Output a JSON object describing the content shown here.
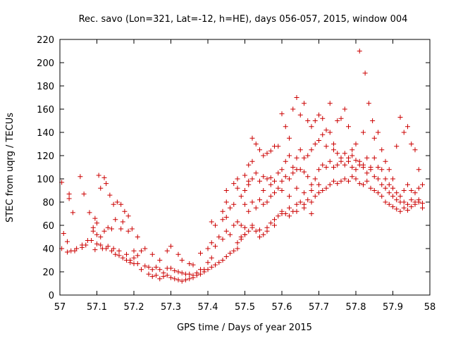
{
  "chart_data": {
    "type": "scatter",
    "title": "Rec. savo (Lon=321, Lat=-12, h=HE), days 056-057, 2015, window 004",
    "xlabel": "GPS time / Days of year 2015",
    "ylabel": "STEC from uqrg / TECUs",
    "xlim": [
      57,
      58
    ],
    "ylim": [
      0,
      220
    ],
    "xticks": [
      "57",
      "57.1",
      "57.2",
      "57.3",
      "57.4",
      "57.5",
      "57.6",
      "57.7",
      "57.8",
      "57.9",
      "58"
    ],
    "yticks": [
      "0",
      "20",
      "40",
      "60",
      "80",
      "100",
      "120",
      "140",
      "160",
      "180",
      "200",
      "220"
    ],
    "grid": false,
    "marker": "plus",
    "color": "#cc0000",
    "points": [
      [
        57.005,
        97
      ],
      [
        57.01,
        53
      ],
      [
        57.005,
        40
      ],
      [
        57.025,
        87
      ],
      [
        57.025,
        83
      ],
      [
        57.035,
        71
      ],
      [
        57.055,
        102
      ],
      [
        57.065,
        87
      ],
      [
        57.08,
        71
      ],
      [
        57.095,
        66
      ],
      [
        57.02,
        46
      ],
      [
        57.03,
        38
      ],
      [
        57.045,
        40
      ],
      [
        57.06,
        41
      ],
      [
        57.07,
        43
      ],
      [
        57.085,
        47
      ],
      [
        57.09,
        58
      ],
      [
        57.1,
        62
      ],
      [
        57.105,
        103
      ],
      [
        57.12,
        101
      ],
      [
        57.11,
        92
      ],
      [
        57.125,
        96
      ],
      [
        57.135,
        86
      ],
      [
        57.145,
        78
      ],
      [
        57.155,
        80
      ],
      [
        57.165,
        78
      ],
      [
        57.175,
        72
      ],
      [
        57.185,
        68
      ],
      [
        57.02,
        37
      ],
      [
        57.04,
        38
      ],
      [
        57.06,
        43
      ],
      [
        57.075,
        47
      ],
      [
        57.09,
        55
      ],
      [
        57.1,
        52
      ],
      [
        57.11,
        50
      ],
      [
        57.12,
        55
      ],
      [
        57.13,
        58
      ],
      [
        57.14,
        57
      ],
      [
        57.15,
        65
      ],
      [
        57.165,
        57
      ],
      [
        57.17,
        63
      ],
      [
        57.185,
        55
      ],
      [
        57.195,
        57
      ],
      [
        57.21,
        50
      ],
      [
        57.095,
        39
      ],
      [
        57.1,
        44
      ],
      [
        57.11,
        43
      ],
      [
        57.115,
        40
      ],
      [
        57.125,
        40
      ],
      [
        57.14,
        38
      ],
      [
        57.15,
        35
      ],
      [
        57.16,
        34
      ],
      [
        57.17,
        32
      ],
      [
        57.18,
        35
      ],
      [
        57.19,
        30
      ],
      [
        57.2,
        32
      ],
      [
        57.21,
        34
      ],
      [
        57.13,
        42
      ],
      [
        57.145,
        40
      ],
      [
        57.16,
        38
      ],
      [
        57.18,
        30
      ],
      [
        57.19,
        28
      ],
      [
        57.2,
        27
      ],
      [
        57.21,
        27
      ],
      [
        57.22,
        22
      ],
      [
        57.23,
        25
      ],
      [
        57.24,
        24
      ],
      [
        57.25,
        22
      ],
      [
        57.26,
        24
      ],
      [
        57.27,
        22
      ],
      [
        57.28,
        19
      ],
      [
        57.29,
        23
      ],
      [
        57.3,
        23
      ],
      [
        57.31,
        21
      ],
      [
        57.32,
        20
      ],
      [
        57.33,
        19
      ],
      [
        57.34,
        18
      ],
      [
        57.35,
        18
      ],
      [
        57.36,
        17
      ],
      [
        57.37,
        19
      ],
      [
        57.2,
        38
      ],
      [
        57.22,
        38
      ],
      [
        57.23,
        40
      ],
      [
        57.25,
        35
      ],
      [
        57.27,
        30
      ],
      [
        57.29,
        38
      ],
      [
        57.3,
        42
      ],
      [
        57.32,
        35
      ],
      [
        57.33,
        30
      ],
      [
        57.35,
        27
      ],
      [
        57.36,
        26
      ],
      [
        57.38,
        22
      ],
      [
        57.39,
        22
      ],
      [
        57.4,
        28
      ],
      [
        57.41,
        32
      ],
      [
        57.24,
        18
      ],
      [
        57.25,
        16
      ],
      [
        57.26,
        17
      ],
      [
        57.27,
        14
      ],
      [
        57.28,
        16
      ],
      [
        57.29,
        17
      ],
      [
        57.3,
        15
      ],
      [
        57.31,
        14
      ],
      [
        57.32,
        13
      ],
      [
        57.33,
        12
      ],
      [
        57.34,
        13
      ],
      [
        57.35,
        14
      ],
      [
        57.36,
        15
      ],
      [
        57.37,
        17
      ],
      [
        57.38,
        18
      ],
      [
        57.39,
        20
      ],
      [
        57.4,
        22
      ],
      [
        57.41,
        24
      ],
      [
        57.42,
        26
      ],
      [
        57.43,
        28
      ],
      [
        57.44,
        30
      ],
      [
        57.45,
        33
      ],
      [
        57.46,
        36
      ],
      [
        57.47,
        38
      ],
      [
        57.48,
        40
      ],
      [
        57.38,
        36
      ],
      [
        57.4,
        40
      ],
      [
        57.41,
        45
      ],
      [
        57.42,
        42
      ],
      [
        57.43,
        50
      ],
      [
        57.44,
        48
      ],
      [
        57.45,
        55
      ],
      [
        57.46,
        52
      ],
      [
        57.47,
        60
      ],
      [
        57.48,
        63
      ],
      [
        57.49,
        60
      ],
      [
        57.5,
        58
      ],
      [
        57.41,
        63
      ],
      [
        57.42,
        60
      ],
      [
        57.44,
        65
      ],
      [
        57.45,
        67
      ],
      [
        57.45,
        80
      ],
      [
        57.46,
        75
      ],
      [
        57.47,
        78
      ],
      [
        57.48,
        92
      ],
      [
        57.49,
        85
      ],
      [
        57.5,
        90
      ],
      [
        57.51,
        98
      ],
      [
        57.44,
        72
      ],
      [
        57.45,
        90
      ],
      [
        57.47,
        96
      ],
      [
        57.48,
        100
      ],
      [
        57.5,
        103
      ],
      [
        57.51,
        112
      ],
      [
        57.52,
        115
      ],
      [
        57.52,
        135
      ],
      [
        57.53,
        130
      ],
      [
        57.54,
        125
      ],
      [
        57.55,
        120
      ],
      [
        57.56,
        122
      ],
      [
        57.57,
        124
      ],
      [
        57.58,
        128
      ],
      [
        57.59,
        128
      ],
      [
        57.6,
        156
      ],
      [
        57.61,
        145
      ],
      [
        57.62,
        135
      ],
      [
        57.63,
        160
      ],
      [
        57.64,
        170
      ],
      [
        57.65,
        155
      ],
      [
        57.66,
        165
      ],
      [
        57.67,
        150
      ],
      [
        57.68,
        145
      ],
      [
        57.69,
        150
      ],
      [
        57.7,
        155
      ],
      [
        57.71,
        152
      ],
      [
        57.72,
        142
      ],
      [
        57.73,
        165
      ],
      [
        57.74,
        130
      ],
      [
        57.75,
        150
      ],
      [
        57.76,
        152
      ],
      [
        57.77,
        160
      ],
      [
        57.78,
        145
      ],
      [
        57.79,
        120
      ],
      [
        57.8,
        130
      ],
      [
        57.81,
        210
      ],
      [
        57.82,
        140
      ],
      [
        57.825,
        191
      ],
      [
        57.835,
        165
      ],
      [
        57.845,
        150
      ],
      [
        57.85,
        135
      ],
      [
        57.86,
        140
      ],
      [
        57.87,
        125
      ],
      [
        57.88,
        115
      ],
      [
        57.89,
        108
      ],
      [
        57.9,
        100
      ],
      [
        57.91,
        128
      ],
      [
        57.92,
        153
      ],
      [
        57.93,
        140
      ],
      [
        57.94,
        145
      ],
      [
        57.95,
        130
      ],
      [
        57.96,
        125
      ],
      [
        57.97,
        108
      ],
      [
        57.51,
        95
      ],
      [
        57.52,
        100
      ],
      [
        57.53,
        105
      ],
      [
        57.54,
        98
      ],
      [
        57.55,
        102
      ],
      [
        57.56,
        100
      ],
      [
        57.57,
        101
      ],
      [
        57.58,
        98
      ],
      [
        57.59,
        105
      ],
      [
        57.6,
        108
      ],
      [
        57.61,
        115
      ],
      [
        57.62,
        120
      ],
      [
        57.63,
        110
      ],
      [
        57.64,
        118
      ],
      [
        57.65,
        125
      ],
      [
        57.66,
        118
      ],
      [
        57.67,
        120
      ],
      [
        57.68,
        125
      ],
      [
        57.69,
        130
      ],
      [
        57.7,
        133
      ],
      [
        57.71,
        138
      ],
      [
        57.72,
        128
      ],
      [
        57.73,
        140
      ],
      [
        57.74,
        125
      ],
      [
        57.75,
        122
      ],
      [
        57.76,
        118
      ],
      [
        57.77,
        122
      ],
      [
        57.78,
        118
      ],
      [
        57.79,
        125
      ],
      [
        57.8,
        116
      ],
      [
        57.81,
        115
      ],
      [
        57.82,
        112
      ],
      [
        57.83,
        118
      ],
      [
        57.84,
        110
      ],
      [
        57.85,
        118
      ],
      [
        57.86,
        110
      ],
      [
        57.87,
        108
      ],
      [
        57.88,
        100
      ],
      [
        57.89,
        95
      ],
      [
        57.9,
        92
      ],
      [
        57.91,
        88
      ],
      [
        57.92,
        85
      ],
      [
        57.93,
        90
      ],
      [
        57.94,
        95
      ],
      [
        57.95,
        90
      ],
      [
        57.96,
        88
      ],
      [
        57.97,
        92
      ],
      [
        57.98,
        95
      ],
      [
        57.5,
        78
      ],
      [
        57.51,
        72
      ],
      [
        57.52,
        80
      ],
      [
        57.53,
        75
      ],
      [
        57.54,
        82
      ],
      [
        57.55,
        78
      ],
      [
        57.56,
        80
      ],
      [
        57.57,
        85
      ],
      [
        57.58,
        88
      ],
      [
        57.59,
        92
      ],
      [
        57.6,
        98
      ],
      [
        57.61,
        102
      ],
      [
        57.62,
        100
      ],
      [
        57.63,
        105
      ],
      [
        57.64,
        108
      ],
      [
        57.65,
        108
      ],
      [
        57.66,
        106
      ],
      [
        57.67,
        102
      ],
      [
        57.68,
        95
      ],
      [
        57.69,
        100
      ],
      [
        57.7,
        108
      ],
      [
        57.71,
        112
      ],
      [
        57.72,
        110
      ],
      [
        57.73,
        115
      ],
      [
        57.74,
        110
      ],
      [
        57.75,
        112
      ],
      [
        57.76,
        115
      ],
      [
        57.77,
        112
      ],
      [
        57.78,
        115
      ],
      [
        57.79,
        110
      ],
      [
        57.8,
        108
      ],
      [
        57.81,
        112
      ],
      [
        57.82,
        110
      ],
      [
        57.83,
        105
      ],
      [
        57.84,
        108
      ],
      [
        57.85,
        102
      ],
      [
        57.86,
        100
      ],
      [
        57.87,
        95
      ],
      [
        57.88,
        92
      ],
      [
        57.89,
        88
      ],
      [
        57.9,
        85
      ],
      [
        57.91,
        82
      ],
      [
        57.92,
        80
      ],
      [
        57.93,
        80
      ],
      [
        57.94,
        78
      ],
      [
        57.95,
        82
      ],
      [
        57.96,
        80
      ],
      [
        57.97,
        82
      ],
      [
        57.98,
        79
      ],
      [
        57.49,
        50
      ],
      [
        57.5,
        52
      ],
      [
        57.51,
        55
      ],
      [
        57.52,
        58
      ],
      [
        57.53,
        55
      ],
      [
        57.54,
        56
      ],
      [
        57.55,
        52
      ],
      [
        57.56,
        58
      ],
      [
        57.57,
        62
      ],
      [
        57.58,
        65
      ],
      [
        57.59,
        68
      ],
      [
        57.6,
        72
      ],
      [
        57.61,
        70
      ],
      [
        57.62,
        75
      ],
      [
        57.63,
        72
      ],
      [
        57.64,
        78
      ],
      [
        57.65,
        80
      ],
      [
        57.66,
        78
      ],
      [
        57.67,
        82
      ],
      [
        57.68,
        80
      ],
      [
        57.69,
        85
      ],
      [
        57.7,
        88
      ],
      [
        57.71,
        90
      ],
      [
        57.72,
        92
      ],
      [
        57.73,
        95
      ],
      [
        57.74,
        98
      ],
      [
        57.75,
        96
      ],
      [
        57.76,
        98
      ],
      [
        57.77,
        100
      ],
      [
        57.78,
        98
      ],
      [
        57.79,
        102
      ],
      [
        57.8,
        100
      ],
      [
        57.81,
        96
      ],
      [
        57.82,
        95
      ],
      [
        57.83,
        98
      ],
      [
        57.84,
        92
      ],
      [
        57.85,
        90
      ],
      [
        57.86,
        88
      ],
      [
        57.87,
        85
      ],
      [
        57.88,
        80
      ],
      [
        57.89,
        78
      ],
      [
        57.9,
        76
      ],
      [
        57.91,
        74
      ],
      [
        57.92,
        72
      ],
      [
        57.93,
        75
      ],
      [
        57.94,
        73
      ],
      [
        57.95,
        76
      ],
      [
        57.96,
        78
      ],
      [
        57.97,
        80
      ],
      [
        57.98,
        75
      ],
      [
        57.48,
        45
      ],
      [
        57.49,
        48
      ],
      [
        57.5,
        52
      ],
      [
        57.52,
        60
      ],
      [
        57.54,
        50
      ],
      [
        57.56,
        55
      ],
      [
        57.58,
        60
      ],
      [
        57.6,
        70
      ],
      [
        57.62,
        68
      ],
      [
        57.64,
        72
      ],
      [
        57.66,
        75
      ],
      [
        57.68,
        70
      ],
      [
        57.55,
        90
      ],
      [
        57.57,
        95
      ],
      [
        57.6,
        90
      ],
      [
        57.62,
        85
      ],
      [
        57.64,
        92
      ],
      [
        57.66,
        88
      ],
      [
        57.68,
        90
      ],
      [
        57.7,
        95
      ]
    ]
  }
}
